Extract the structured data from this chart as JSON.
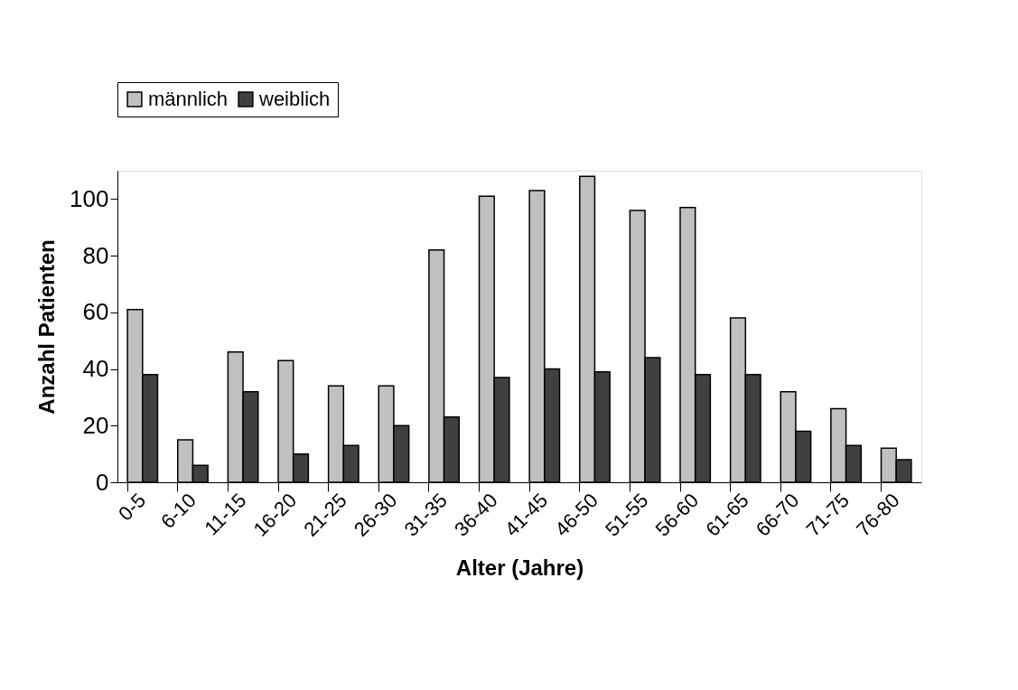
{
  "chart_data": {
    "type": "bar",
    "xlabel": "Alter (Jahre)",
    "ylabel": "Anzahl Patienten",
    "categories": [
      "0-5",
      "6-10",
      "11-15",
      "16-20",
      "21-25",
      "26-30",
      "31-35",
      "36-40",
      "41-45",
      "46-50",
      "51-55",
      "56-60",
      "61-65",
      "66-70",
      "71-75",
      "76-80"
    ],
    "series": [
      {
        "name": "männlich",
        "color": "#c0c0c0",
        "values": [
          61,
          15,
          46,
          43,
          34,
          34,
          82,
          101,
          103,
          108,
          96,
          97,
          58,
          32,
          26,
          12
        ]
      },
      {
        "name": "weiblich",
        "color": "#404040",
        "values": [
          38,
          6,
          32,
          10,
          13,
          20,
          23,
          37,
          40,
          39,
          44,
          38,
          38,
          18,
          13,
          8
        ]
      }
    ],
    "ylim": [
      0,
      110
    ],
    "yticks": [
      0,
      20,
      40,
      60,
      80,
      100
    ],
    "grid": false,
    "legend": "top"
  }
}
